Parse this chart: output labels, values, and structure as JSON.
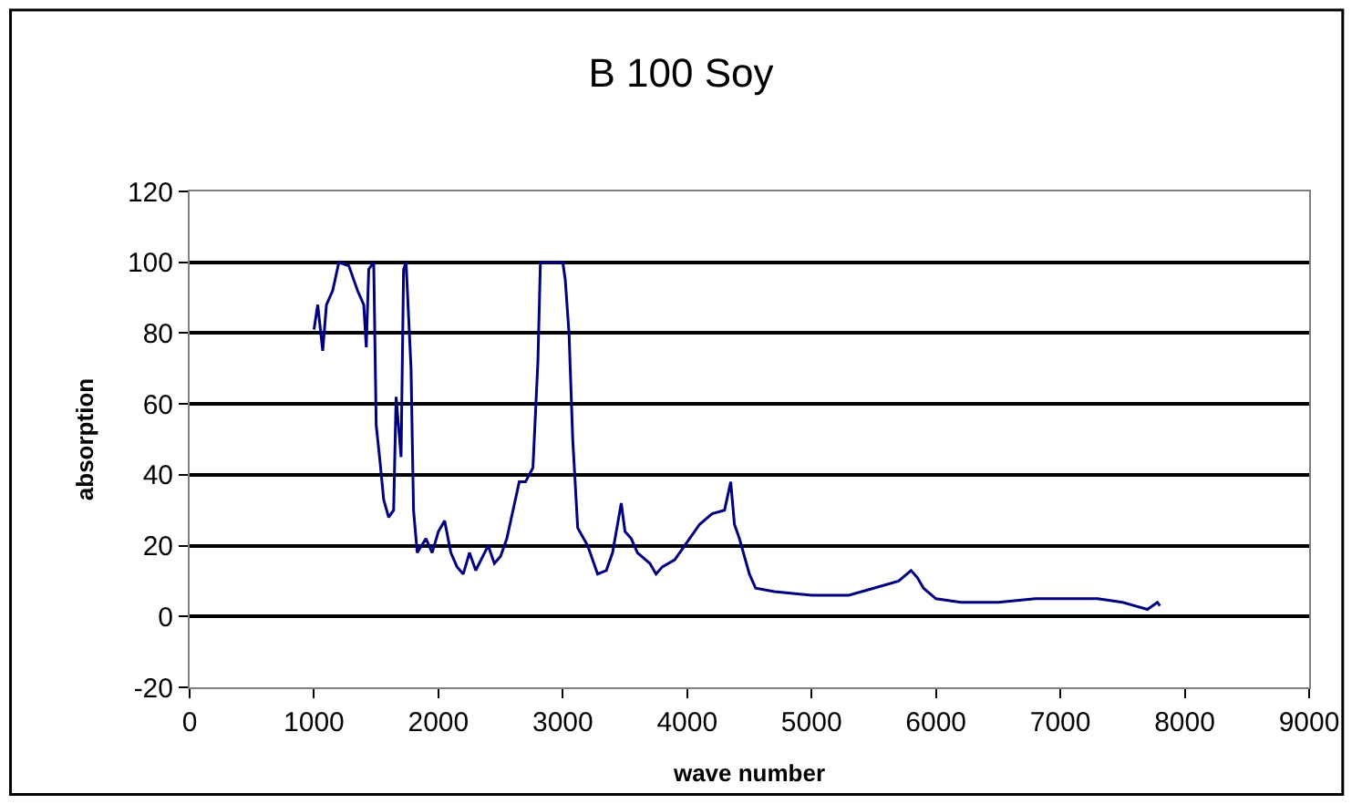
{
  "chart_data": {
    "type": "line",
    "title": "B 100 Soy",
    "xlabel": "wave number",
    "ylabel": "absorption",
    "x": [
      1000,
      1030,
      1070,
      1100,
      1150,
      1200,
      1280,
      1350,
      1400,
      1420,
      1440,
      1480,
      1500,
      1530,
      1560,
      1600,
      1640,
      1660,
      1700,
      1720,
      1740,
      1780,
      1800,
      1830,
      1900,
      1950,
      2000,
      2050,
      2100,
      2150,
      2200,
      2250,
      2300,
      2400,
      2450,
      2500,
      2550,
      2600,
      2650,
      2700,
      2760,
      2800,
      2820,
      3000,
      3020,
      3050,
      3080,
      3120,
      3200,
      3280,
      3350,
      3400,
      3470,
      3500,
      3550,
      3600,
      3700,
      3750,
      3800,
      3900,
      4000,
      4100,
      4200,
      4300,
      4350,
      4380,
      4420,
      4500,
      4550,
      4700,
      5000,
      5300,
      5500,
      5700,
      5800,
      5850,
      5900,
      6000,
      6200,
      6500,
      6800,
      7000,
      7300,
      7500,
      7600,
      7700,
      7780,
      7800
    ],
    "series": [
      {
        "color": "#000080",
        "values": [
          81,
          88,
          75,
          88,
          92,
          100,
          99,
          92,
          88,
          76,
          98,
          100,
          54,
          44,
          33,
          28,
          30,
          62,
          45,
          98,
          100,
          70,
          30,
          18,
          22,
          18,
          24,
          27,
          18,
          14,
          12,
          18,
          13,
          20,
          15,
          17,
          22,
          30,
          38,
          38,
          42,
          72,
          100,
          100,
          95,
          80,
          50,
          25,
          20,
          12,
          13,
          18,
          32,
          24,
          22,
          18,
          15,
          12,
          14,
          16,
          21,
          26,
          29,
          30,
          38,
          26,
          22,
          12,
          8,
          7,
          6,
          6,
          8,
          10,
          13,
          11,
          8,
          5,
          4,
          4,
          5,
          5,
          5,
          4,
          3,
          2,
          4,
          3
        ]
      }
    ],
    "xlim": [
      0,
      9000
    ],
    "xticks": [
      0,
      1000,
      2000,
      3000,
      4000,
      5000,
      6000,
      7000,
      8000,
      9000
    ],
    "ylim": [
      -20,
      120
    ],
    "yticks": [
      -20,
      0,
      20,
      40,
      60,
      80,
      100,
      120
    ],
    "grid": "y",
    "marker": "none",
    "line_style": "solid"
  }
}
